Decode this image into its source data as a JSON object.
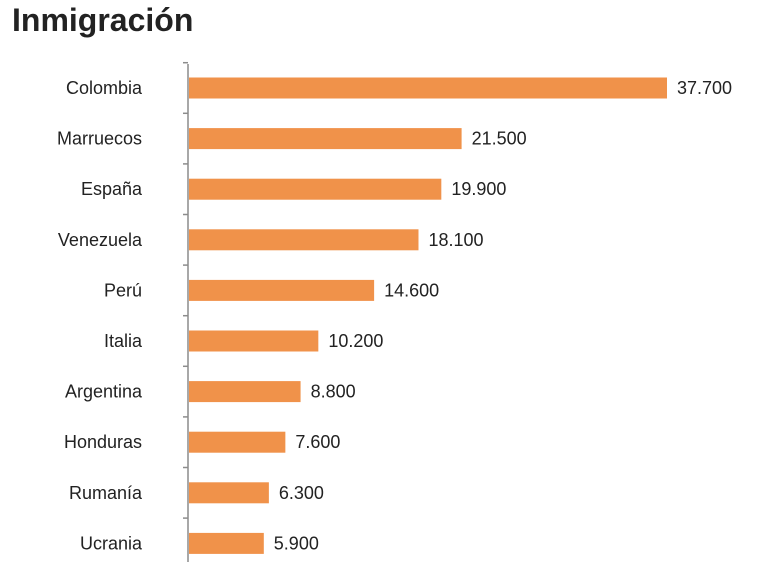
{
  "chart_data": {
    "type": "bar",
    "orientation": "horizontal",
    "title": "Inmigración",
    "xlabel": "",
    "ylabel": "",
    "categories": [
      "Colombia",
      "Marruecos",
      "España",
      "Venezuela",
      "Perú",
      "Italia",
      "Argentina",
      "Honduras",
      "Rumanía",
      "Ucrania"
    ],
    "values": [
      37700,
      21500,
      19900,
      18100,
      14600,
      10200,
      8800,
      7600,
      6300,
      5900
    ],
    "data_labels": [
      "37.700",
      "21.500",
      "19.900",
      "18.100",
      "14.600",
      "10.200",
      "8.800",
      "7.600",
      "6.300",
      "5.900"
    ],
    "xlim": [
      0,
      39000
    ],
    "bar_color": "#f0924a",
    "grid": false,
    "legend": "none"
  }
}
